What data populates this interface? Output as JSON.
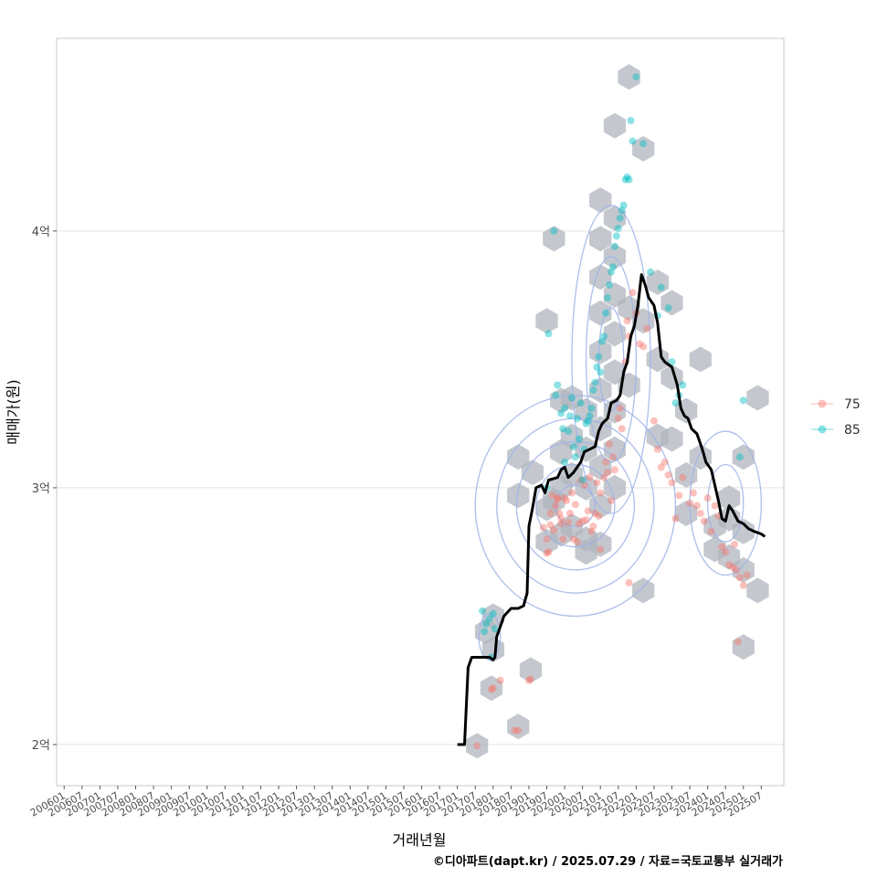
{
  "chart_data": {
    "type": "scatter",
    "title": "",
    "xlabel": "거래년월",
    "ylabel": "매매가(원)",
    "caption": "©디아파트(dapt.kr) / 2025.07.29 / 자료=국토교통부 실거래가",
    "x_range": [
      2005.79,
      2026.13
    ],
    "ylim": [
      18400,
      47500
    ],
    "y_ticks": [
      {
        "value": 20000,
        "label": "2억"
      },
      {
        "value": 30000,
        "label": "3억"
      },
      {
        "value": 40000,
        "label": "4억"
      }
    ],
    "x_ticks": [
      "200601",
      "200607",
      "200701",
      "200707",
      "200801",
      "200807",
      "200901",
      "200907",
      "201001",
      "201007",
      "201101",
      "201107",
      "201201",
      "201207",
      "201301",
      "201307",
      "201401",
      "201407",
      "201501",
      "201507",
      "201601",
      "201607",
      "201701",
      "201707",
      "201801",
      "201807",
      "201901",
      "201907",
      "202001",
      "202007",
      "202101",
      "202107",
      "202201",
      "202207",
      "202301",
      "202307",
      "202401",
      "202407",
      "202501",
      "202507"
    ],
    "grid": true,
    "legend_position": "right",
    "legend": [
      {
        "name": "75",
        "color": "#F8766D"
      },
      {
        "name": "85",
        "color": "#00BFC4"
      }
    ],
    "hex_fill": "#b0b5bd",
    "density_color": "#9fb3e8",
    "trend_color": "#000000",
    "series": [
      {
        "name": "75",
        "color": "#F8766D",
        "points": [
          [
            2017.55,
            19950
          ],
          [
            2017.95,
            22150
          ],
          [
            2018.0,
            22200
          ],
          [
            2018.2,
            22500
          ],
          [
            2018.6,
            20550
          ],
          [
            2018.7,
            20550
          ],
          [
            2019.0,
            22500
          ],
          [
            2019.05,
            22550
          ],
          [
            2019.4,
            28450
          ],
          [
            2019.5,
            28000
          ],
          [
            2019.5,
            27450
          ],
          [
            2019.55,
            27500
          ],
          [
            2019.6,
            28550
          ],
          [
            2019.6,
            29000
          ],
          [
            2019.65,
            29700
          ],
          [
            2019.7,
            28350
          ],
          [
            2019.75,
            29300
          ],
          [
            2019.8,
            29550
          ],
          [
            2019.8,
            29600
          ],
          [
            2019.85,
            29000
          ],
          [
            2019.9,
            28600
          ],
          [
            2019.9,
            28800
          ],
          [
            2019.95,
            28000
          ],
          [
            2020.0,
            29600
          ],
          [
            2020.05,
            29500
          ],
          [
            2020.1,
            28650
          ],
          [
            2020.15,
            29000
          ],
          [
            2020.2,
            29800
          ],
          [
            2020.25,
            28000
          ],
          [
            2020.3,
            29350
          ],
          [
            2020.35,
            27900
          ],
          [
            2020.4,
            28600
          ],
          [
            2020.45,
            30300
          ],
          [
            2020.5,
            28700
          ],
          [
            2020.55,
            30100
          ],
          [
            2020.6,
            28750
          ],
          [
            2020.65,
            29100
          ],
          [
            2020.7,
            30400
          ],
          [
            2020.75,
            28300
          ],
          [
            2020.8,
            28500
          ],
          [
            2020.85,
            29000
          ],
          [
            2020.9,
            30200
          ],
          [
            2020.95,
            28900
          ],
          [
            2021.0,
            27600
          ],
          [
            2021.0,
            29800
          ],
          [
            2021.1,
            30400
          ],
          [
            2021.15,
            31000
          ],
          [
            2021.2,
            30600
          ],
          [
            2021.25,
            31700
          ],
          [
            2021.3,
            29500
          ],
          [
            2021.35,
            31200
          ],
          [
            2021.4,
            30700
          ],
          [
            2021.5,
            32700
          ],
          [
            2021.55,
            33100
          ],
          [
            2021.6,
            32300
          ],
          [
            2021.7,
            34900
          ],
          [
            2021.75,
            36500
          ],
          [
            2021.8,
            35900
          ],
          [
            2021.8,
            26300
          ],
          [
            2021.9,
            37600
          ],
          [
            2022.0,
            36800
          ],
          [
            2022.1,
            35600
          ],
          [
            2022.2,
            35500
          ],
          [
            2022.3,
            36200
          ],
          [
            2022.5,
            32600
          ],
          [
            2022.6,
            31500
          ],
          [
            2022.7,
            30800
          ],
          [
            2022.8,
            31000
          ],
          [
            2022.9,
            30500
          ],
          [
            2023.0,
            30200
          ],
          [
            2023.1,
            28800
          ],
          [
            2023.2,
            29700
          ],
          [
            2023.3,
            30400
          ],
          [
            2023.5,
            29400
          ],
          [
            2023.6,
            29800
          ],
          [
            2023.7,
            29300
          ],
          [
            2023.8,
            29000
          ],
          [
            2023.9,
            28700
          ],
          [
            2024.0,
            29600
          ],
          [
            2024.1,
            28300
          ],
          [
            2024.2,
            29300
          ],
          [
            2024.3,
            28900
          ],
          [
            2024.4,
            27700
          ],
          [
            2024.5,
            27500
          ],
          [
            2024.6,
            27000
          ],
          [
            2024.7,
            26900
          ],
          [
            2024.75,
            27800
          ],
          [
            2024.8,
            26800
          ],
          [
            2024.85,
            24000
          ],
          [
            2024.9,
            26500
          ],
          [
            2025.0,
            26200
          ],
          [
            2025.1,
            26600
          ]
        ]
      },
      {
        "name": "85",
        "color": "#00BFC4",
        "points": [
          [
            2017.7,
            25200
          ],
          [
            2017.75,
            24400
          ],
          [
            2017.8,
            24700
          ],
          [
            2017.9,
            24900
          ],
          [
            2017.95,
            23400
          ],
          [
            2018.0,
            25100
          ],
          [
            2018.05,
            24500
          ],
          [
            2019.5,
            30000
          ],
          [
            2019.55,
            36000
          ],
          [
            2019.7,
            40000
          ],
          [
            2019.75,
            33600
          ],
          [
            2019.8,
            34000
          ],
          [
            2019.9,
            32900
          ],
          [
            2019.95,
            32300
          ],
          [
            2020.0,
            31000
          ],
          [
            2020.0,
            33100
          ],
          [
            2020.1,
            32200
          ],
          [
            2020.15,
            32800
          ],
          [
            2020.2,
            33500
          ],
          [
            2020.25,
            31600
          ],
          [
            2020.3,
            31200
          ],
          [
            2020.35,
            32700
          ],
          [
            2020.4,
            31900
          ],
          [
            2020.45,
            33300
          ],
          [
            2020.5,
            30300
          ],
          [
            2020.55,
            31500
          ],
          [
            2020.6,
            32500
          ],
          [
            2020.65,
            32600
          ],
          [
            2020.7,
            32800
          ],
          [
            2020.75,
            33100
          ],
          [
            2020.8,
            33800
          ],
          [
            2020.85,
            34100
          ],
          [
            2020.9,
            34700
          ],
          [
            2020.95,
            35100
          ],
          [
            2021.0,
            34500
          ],
          [
            2021.05,
            35700
          ],
          [
            2021.1,
            35900
          ],
          [
            2021.15,
            36800
          ],
          [
            2021.2,
            37400
          ],
          [
            2021.25,
            37900
          ],
          [
            2021.3,
            38400
          ],
          [
            2021.35,
            38600
          ],
          [
            2021.4,
            39400
          ],
          [
            2021.45,
            39800
          ],
          [
            2021.5,
            40100
          ],
          [
            2021.55,
            40500
          ],
          [
            2021.6,
            40800
          ],
          [
            2021.65,
            41000
          ],
          [
            2021.7,
            42000
          ],
          [
            2021.75,
            42100
          ],
          [
            2021.8,
            42000
          ],
          [
            2021.85,
            44300
          ],
          [
            2021.9,
            43500
          ],
          [
            2022.0,
            46000
          ],
          [
            2022.2,
            43400
          ],
          [
            2022.4,
            38400
          ],
          [
            2022.6,
            36700
          ],
          [
            2022.7,
            37800
          ],
          [
            2022.9,
            37000
          ],
          [
            2023.0,
            34900
          ],
          [
            2023.1,
            33300
          ],
          [
            2023.2,
            33600
          ],
          [
            2023.3,
            34000
          ],
          [
            2024.9,
            31200
          ],
          [
            2025.0,
            33400
          ]
        ]
      }
    ],
    "hexbins": [
      [
        2017.55,
        19950
      ],
      [
        2017.95,
        22200
      ],
      [
        2017.8,
        24400
      ],
      [
        2018.0,
        25000
      ],
      [
        2018.0,
        23700
      ],
      [
        2018.7,
        20700
      ],
      [
        2019.05,
        22900
      ],
      [
        2018.7,
        31200
      ],
      [
        2018.7,
        29700
      ],
      [
        2019.1,
        30600
      ],
      [
        2019.5,
        29200
      ],
      [
        2019.5,
        27900
      ],
      [
        2019.5,
        36500
      ],
      [
        2019.7,
        39700
      ],
      [
        2019.9,
        33400
      ],
      [
        2019.9,
        31400
      ],
      [
        2019.9,
        30000
      ],
      [
        2019.9,
        28200
      ],
      [
        2019.7,
        29500
      ],
      [
        2020.2,
        30500
      ],
      [
        2020.2,
        32000
      ],
      [
        2020.2,
        33500
      ],
      [
        2020.2,
        28500
      ],
      [
        2020.6,
        30000
      ],
      [
        2020.6,
        31500
      ],
      [
        2020.6,
        33000
      ],
      [
        2020.6,
        28000
      ],
      [
        2020.6,
        27500
      ],
      [
        2021.0,
        29300
      ],
      [
        2021.0,
        30800
      ],
      [
        2021.0,
        32300
      ],
      [
        2021.0,
        33800
      ],
      [
        2021.0,
        35300
      ],
      [
        2021.0,
        36800
      ],
      [
        2021.0,
        38200
      ],
      [
        2021.0,
        39700
      ],
      [
        2021.0,
        41200
      ],
      [
        2021.0,
        27800
      ],
      [
        2021.4,
        30000
      ],
      [
        2021.4,
        31500
      ],
      [
        2021.4,
        33000
      ],
      [
        2021.4,
        34500
      ],
      [
        2021.4,
        36000
      ],
      [
        2021.4,
        37500
      ],
      [
        2021.4,
        39000
      ],
      [
        2021.4,
        40500
      ],
      [
        2021.4,
        44100
      ],
      [
        2021.8,
        46000
      ],
      [
        2021.8,
        37000
      ],
      [
        2021.8,
        34000
      ],
      [
        2022.2,
        43200
      ],
      [
        2022.2,
        36500
      ],
      [
        2022.2,
        26000
      ],
      [
        2022.6,
        38000
      ],
      [
        2022.6,
        35000
      ],
      [
        2022.6,
        32000
      ],
      [
        2023.0,
        37200
      ],
      [
        2023.0,
        34300
      ],
      [
        2023.0,
        31900
      ],
      [
        2023.4,
        30500
      ],
      [
        2023.4,
        29000
      ],
      [
        2023.4,
        33000
      ],
      [
        2023.8,
        35000
      ],
      [
        2023.8,
        31200
      ],
      [
        2024.2,
        28500
      ],
      [
        2024.6,
        29600
      ],
      [
        2024.6,
        27300
      ],
      [
        2024.6,
        28800
      ],
      [
        2025.0,
        26800
      ],
      [
        2025.0,
        28300
      ],
      [
        2025.0,
        31200
      ],
      [
        2025.0,
        23800
      ],
      [
        2025.4,
        26000
      ],
      [
        2025.4,
        33500
      ],
      [
        2024.2,
        27600
      ]
    ],
    "trend": [
      [
        2017.0,
        20000
      ],
      [
        2017.2,
        20000
      ],
      [
        2017.3,
        23000
      ],
      [
        2017.4,
        23400
      ],
      [
        2017.6,
        23400
      ],
      [
        2017.9,
        23400
      ],
      [
        2018.0,
        23300
      ],
      [
        2018.05,
        23400
      ],
      [
        2018.1,
        24200
      ],
      [
        2018.2,
        24600
      ],
      [
        2018.3,
        25000
      ],
      [
        2018.5,
        25300
      ],
      [
        2018.7,
        25300
      ],
      [
        2018.85,
        25400
      ],
      [
        2018.95,
        25900
      ],
      [
        2019.0,
        28500
      ],
      [
        2019.1,
        29200
      ],
      [
        2019.2,
        30000
      ],
      [
        2019.35,
        30100
      ],
      [
        2019.45,
        29800
      ],
      [
        2019.55,
        30300
      ],
      [
        2019.8,
        30400
      ],
      [
        2019.9,
        30700
      ],
      [
        2020.0,
        30800
      ],
      [
        2020.1,
        30400
      ],
      [
        2020.25,
        30600
      ],
      [
        2020.35,
        30800
      ],
      [
        2020.45,
        31000
      ],
      [
        2020.55,
        31400
      ],
      [
        2020.7,
        31500
      ],
      [
        2020.85,
        31600
      ],
      [
        2020.95,
        32200
      ],
      [
        2021.05,
        32500
      ],
      [
        2021.2,
        32700
      ],
      [
        2021.3,
        33300
      ],
      [
        2021.45,
        33400
      ],
      [
        2021.55,
        33600
      ],
      [
        2021.65,
        34500
      ],
      [
        2021.75,
        34900
      ],
      [
        2021.85,
        35900
      ],
      [
        2021.95,
        36300
      ],
      [
        2022.05,
        37100
      ],
      [
        2022.15,
        38300
      ],
      [
        2022.25,
        37900
      ],
      [
        2022.35,
        37400
      ],
      [
        2022.5,
        37100
      ],
      [
        2022.6,
        36400
      ],
      [
        2022.7,
        35100
      ],
      [
        2022.8,
        34900
      ],
      [
        2022.9,
        34800
      ],
      [
        2023.0,
        34700
      ],
      [
        2023.15,
        34000
      ],
      [
        2023.25,
        33100
      ],
      [
        2023.35,
        32800
      ],
      [
        2023.45,
        32700
      ],
      [
        2023.55,
        32300
      ],
      [
        2023.7,
        32100
      ],
      [
        2023.85,
        31500
      ],
      [
        2023.95,
        31000
      ],
      [
        2024.1,
        30700
      ],
      [
        2024.2,
        30100
      ],
      [
        2024.3,
        29500
      ],
      [
        2024.4,
        28800
      ],
      [
        2024.5,
        28700
      ],
      [
        2024.6,
        29300
      ],
      [
        2024.7,
        29100
      ],
      [
        2024.85,
        28700
      ],
      [
        2025.0,
        28600
      ],
      [
        2025.15,
        28400
      ],
      [
        2025.3,
        28300
      ],
      [
        2025.5,
        28200
      ],
      [
        2025.6,
        28100
      ]
    ],
    "density_contours": [
      {
        "center": [
          2020.3,
          29300
        ],
        "rx": [
          0.55,
          1.1,
          1.65,
          2.2,
          2.8
        ],
        "ry": [
          800,
          1600,
          2500,
          3400,
          4300
        ]
      },
      {
        "center": [
          2021.3,
          35000
        ],
        "rx": [
          0.35,
          0.7,
          1.1
        ],
        "ry": [
          2000,
          4000,
          6000
        ]
      },
      {
        "center": [
          2024.5,
          29400
        ],
        "rx": [
          0.5,
          1.0
        ],
        "ry": [
          1500,
          2800
        ]
      },
      {
        "center": [
          2017.9,
          24200
        ],
        "rx": [
          0.3
        ],
        "ry": [
          900
        ]
      }
    ]
  }
}
